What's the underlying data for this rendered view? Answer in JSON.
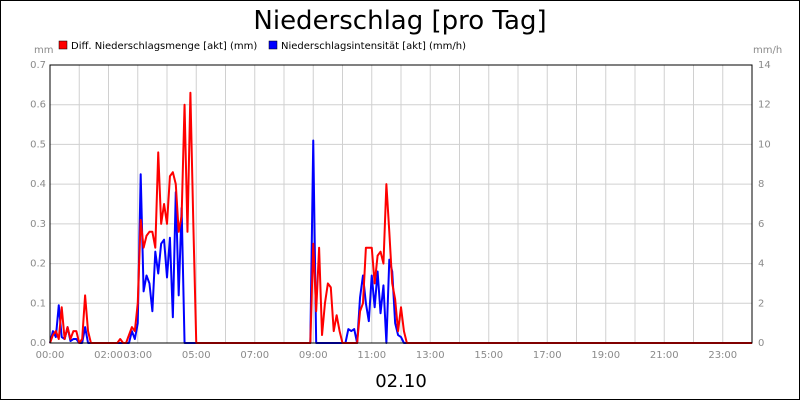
{
  "chart_data": {
    "type": "line",
    "title": "Niederschlag [pro Tag]",
    "xlabel": "02.10",
    "ylabel_left": "mm",
    "ylabel_right": "mm/h",
    "xlim": [
      0,
      24
    ],
    "ylim_left": [
      0,
      0.7
    ],
    "ylim_right": [
      0,
      14
    ],
    "grid": true,
    "legend_position": "top-left",
    "x_ticks": [
      "00:00",
      "02:00",
      "03:00",
      "05:00",
      "07:00",
      "09:00",
      "11:00",
      "13:00",
      "15:00",
      "17:00",
      "19:00",
      "21:00",
      "23:00"
    ],
    "x_tick_hours": [
      0,
      2,
      3,
      5,
      7,
      9,
      11,
      13,
      15,
      17,
      19,
      21,
      23
    ],
    "y_ticks_left": [
      "0.0",
      "0.1",
      "0.2",
      "0.3",
      "0.4",
      "0.5",
      "0.6",
      "0.7"
    ],
    "y_ticks_right": [
      "0",
      "2",
      "4",
      "6",
      "8",
      "10",
      "12",
      "14"
    ],
    "series": [
      {
        "name": "Diff. Niederschlagsmenge [akt] (mm)",
        "axis": "left",
        "color": "#ff0000",
        "x": [
          0,
          0.1,
          0.2,
          0.3,
          0.4,
          0.5,
          0.6,
          0.7,
          0.8,
          0.9,
          1.0,
          1.1,
          1.2,
          1.3,
          1.4,
          1.5,
          1.6,
          1.7,
          2.3,
          2.4,
          2.5,
          2.6,
          2.8,
          2.9,
          3.0,
          3.1,
          3.2,
          3.3,
          3.4,
          3.5,
          3.6,
          3.7,
          3.8,
          3.9,
          4.0,
          4.1,
          4.2,
          4.3,
          4.4,
          4.5,
          4.6,
          4.7,
          4.8,
          4.9,
          5.0,
          8.9,
          9.0,
          9.1,
          9.2,
          9.3,
          9.4,
          9.5,
          9.6,
          9.7,
          9.8,
          9.9,
          10.0,
          10.5,
          10.6,
          10.7,
          10.8,
          10.9,
          11.0,
          11.1,
          11.2,
          11.3,
          11.4,
          11.5,
          11.6,
          11.7,
          11.8,
          11.9,
          12.0,
          12.1,
          12.2,
          24
        ],
        "y": [
          0,
          0.02,
          0.03,
          0.01,
          0.09,
          0.01,
          0.04,
          0.01,
          0.03,
          0.03,
          0,
          0.01,
          0.12,
          0.03,
          0,
          0,
          0,
          0,
          0,
          0.01,
          0,
          0,
          0.04,
          0.03,
          0.1,
          0.31,
          0.24,
          0.27,
          0.28,
          0.28,
          0.24,
          0.48,
          0.3,
          0.35,
          0.3,
          0.42,
          0.43,
          0.4,
          0.28,
          0.32,
          0.6,
          0.28,
          0.63,
          0.3,
          0,
          0,
          0.25,
          0.08,
          0.24,
          0.02,
          0.1,
          0.15,
          0.14,
          0.03,
          0.07,
          0.03,
          0,
          0,
          0.08,
          0.1,
          0.24,
          0.24,
          0.24,
          0.15,
          0.22,
          0.23,
          0.2,
          0.4,
          0.28,
          0.15,
          0.11,
          0.03,
          0.09,
          0.03,
          0,
          0
        ]
      },
      {
        "name": "Niederschlagsintensität [akt] (mm/h)",
        "axis": "right",
        "color": "#0000ff",
        "x": [
          0,
          0.1,
          0.2,
          0.3,
          0.4,
          0.5,
          0.6,
          0.7,
          0.8,
          0.9,
          1.0,
          1.1,
          1.2,
          1.3,
          1.4,
          2.7,
          2.8,
          2.9,
          3.0,
          3.1,
          3.2,
          3.3,
          3.4,
          3.5,
          3.6,
          3.7,
          3.8,
          3.9,
          4.0,
          4.1,
          4.2,
          4.3,
          4.4,
          4.5,
          4.6,
          4.7,
          4.8,
          4.9,
          8.9,
          9.0,
          9.1,
          9.2,
          9.3,
          9.4,
          9.5,
          9.6,
          9.7,
          9.8,
          9.9,
          10.0,
          10.1,
          10.2,
          10.3,
          10.4,
          10.5,
          10.6,
          10.7,
          10.8,
          10.9,
          11.0,
          11.1,
          11.2,
          11.3,
          11.4,
          11.5,
          11.6,
          11.7,
          11.8,
          11.9,
          12.0,
          12.1,
          24
        ],
        "y": [
          0,
          0.6,
          0.3,
          1.9,
          0.3,
          0.2,
          0.8,
          0.1,
          0.2,
          0.2,
          0,
          0,
          0.8,
          0,
          0,
          0,
          0.6,
          0.2,
          1.0,
          8.5,
          2.6,
          3.4,
          3.0,
          1.6,
          4.6,
          3.5,
          5.0,
          5.2,
          3.3,
          5.3,
          1.3,
          7.6,
          2.4,
          6.8,
          0,
          0,
          0,
          0,
          0,
          10.2,
          0,
          0,
          0,
          0,
          0,
          0,
          0,
          0,
          0,
          0,
          0,
          0.7,
          0.6,
          0.7,
          0,
          2.3,
          3.4,
          2.0,
          1.1,
          3.4,
          1.8,
          3.6,
          1.5,
          2.9,
          0,
          4.2,
          3.6,
          1.0,
          0.4,
          0.3,
          0,
          0
        ]
      }
    ]
  }
}
